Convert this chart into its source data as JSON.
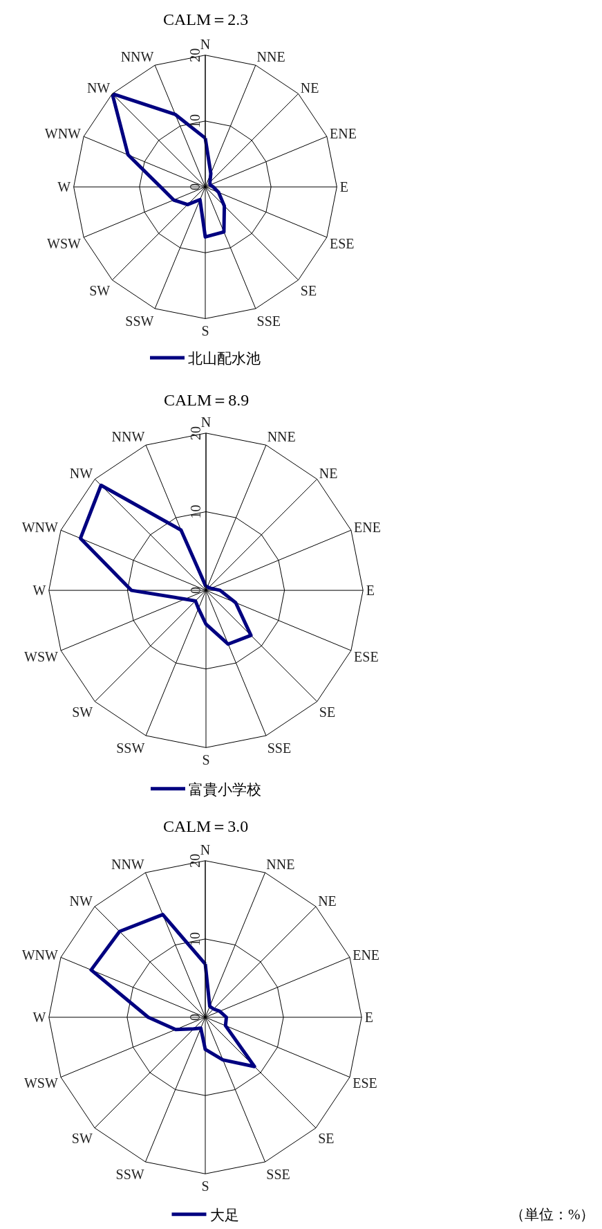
{
  "chart_data": [
    {
      "type": "radar",
      "title": "CALM＝2.3",
      "categories": [
        "N",
        "NNE",
        "NE",
        "ENE",
        "E",
        "ESE",
        "SE",
        "SSE",
        "S",
        "SSW",
        "SW",
        "WSW",
        "W",
        "WNW",
        "NW",
        "NNW"
      ],
      "series": [
        {
          "name": "北山配水池",
          "color": "#000080",
          "values": [
            7.4,
            2.2,
            1.0,
            0.8,
            1.2,
            2.2,
            4.1,
            7.4,
            7.6,
            2.1,
            3.8,
            5.2,
            6.8,
            12.7,
            20,
            11.9
          ]
        }
      ],
      "ylim": [
        0,
        20
      ],
      "yticks": [
        0,
        10,
        20
      ],
      "grid": true,
      "legend": "bottom"
    },
    {
      "type": "radar",
      "title": "CALM＝8.9",
      "categories": [
        "N",
        "NNE",
        "NE",
        "ENE",
        "E",
        "ESE",
        "SE",
        "SSE",
        "S",
        "SSW",
        "SW",
        "WSW",
        "W",
        "WNW",
        "NW",
        "NNW"
      ],
      "series": [
        {
          "name": "富貴小学校",
          "color": "#000080",
          "values": [
            0.5,
            0.5,
            0.5,
            0.7,
            1.8,
            4.1,
            8.1,
            7.4,
            4.3,
            2.5,
            1.9,
            2.9,
            9.5,
            17.3,
            18.9,
            8.3
          ]
        }
      ],
      "ylim": [
        0,
        20
      ],
      "yticks": [
        0,
        10,
        20
      ],
      "grid": true,
      "legend": "bottom"
    },
    {
      "type": "radar",
      "title": "CALM＝3.0",
      "categories": [
        "N",
        "NNE",
        "NE",
        "ENE",
        "E",
        "ESE",
        "SE",
        "SSE",
        "S",
        "SSW",
        "SW",
        "WSW",
        "W",
        "WNW",
        "NW",
        "NNW"
      ],
      "series": [
        {
          "name": "大足",
          "color": "#000080",
          "values": [
            6.8,
            1.5,
            1.5,
            2.0,
            2.7,
            2.8,
            8.9,
            5.9,
            4.1,
            1.5,
            2.1,
            4.1,
            7.3,
            15.8,
            15.5,
            14.2
          ]
        }
      ],
      "ylim": [
        0,
        20
      ],
      "yticks": [
        0,
        10,
        20
      ],
      "grid": true,
      "legend": "bottom",
      "annotations": [
        "（単位：%）"
      ]
    }
  ]
}
